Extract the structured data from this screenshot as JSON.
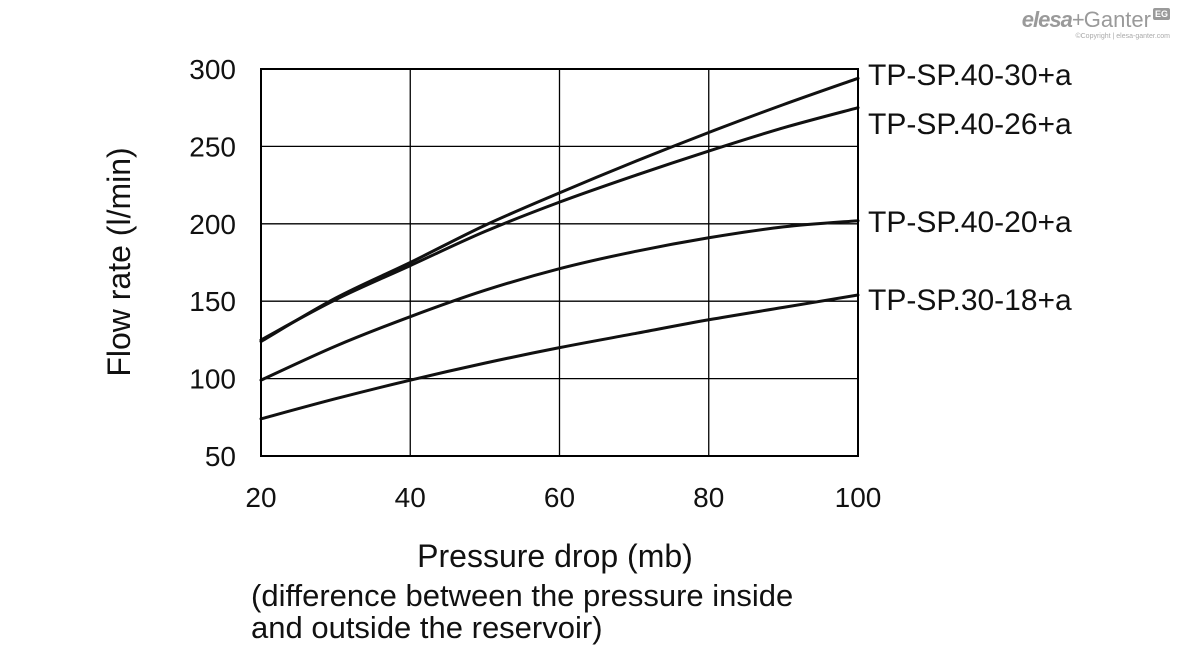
{
  "logo": {
    "brand_left": "elesa",
    "brand_plus": "+",
    "brand_right": "Ganter",
    "badge": "EG",
    "copyright": "©Copyright | elesa-ganter.com"
  },
  "colors": {
    "line": "#111111",
    "grid": "#000000",
    "logo": "#9a9a9a"
  },
  "chart_data": {
    "type": "line",
    "xlabel": "Pressure drop (mb)",
    "xlabel_note": [
      "(difference between the pressure inside",
      "and outside the reservoir)"
    ],
    "ylabel": "Flow rate (l/min)",
    "xlim": [
      20,
      100
    ],
    "ylim": [
      50,
      300
    ],
    "xticks": [
      20,
      40,
      60,
      80,
      100
    ],
    "yticks": [
      50,
      100,
      150,
      200,
      250,
      300
    ],
    "grid": true,
    "legend": "series labels at right end of each line",
    "x": [
      20,
      30,
      40,
      50,
      60,
      70,
      80,
      90,
      100
    ],
    "series": [
      {
        "name": "TP-SP.40-30+a",
        "values": [
          124,
          152,
          175,
          199,
          220,
          240,
          259,
          277,
          294
        ]
      },
      {
        "name": "TP-SP.40-26+a",
        "values": [
          125,
          151,
          173,
          195,
          214,
          231,
          247,
          262,
          275
        ]
      },
      {
        "name": "TP-SP.40-20+a",
        "values": [
          99,
          121,
          140,
          157,
          171,
          182,
          191,
          198,
          202
        ]
      },
      {
        "name": "TP-SP.30-18+a",
        "values": [
          74,
          87,
          99,
          110,
          120,
          129,
          138,
          146,
          154
        ]
      }
    ]
  }
}
